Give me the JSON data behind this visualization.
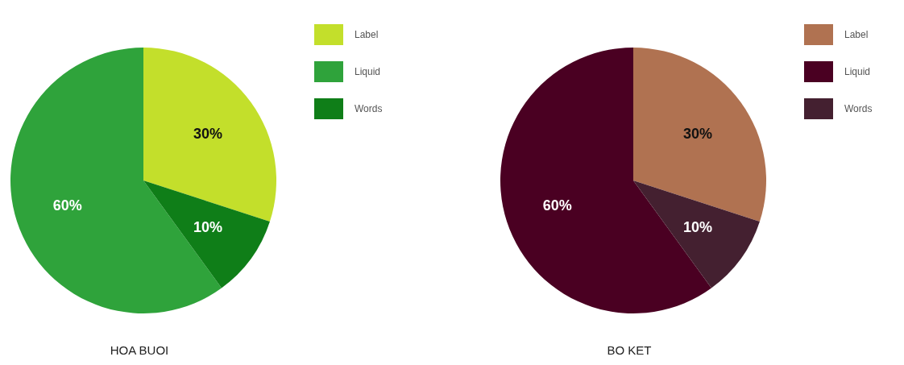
{
  "chart_data": [
    {
      "type": "pie",
      "title": "HOA BUOI",
      "categories": [
        "Label",
        "Liquid",
        "Words"
      ],
      "values": [
        30,
        60,
        10
      ],
      "colors": [
        "#c3df2b",
        "#2fa33b",
        "#0f7e18"
      ],
      "value_labels": [
        "30%",
        "60%",
        "10%"
      ],
      "legend": "top right"
    },
    {
      "type": "pie",
      "title": "BO KET",
      "categories": [
        "Label",
        "Liquid",
        "Words"
      ],
      "values": [
        30,
        60,
        10
      ],
      "colors": [
        "#b07251",
        "#4a0022",
        "#442030"
      ],
      "value_labels": [
        "30%",
        "60%",
        "10%"
      ],
      "legend": "top right"
    }
  ]
}
